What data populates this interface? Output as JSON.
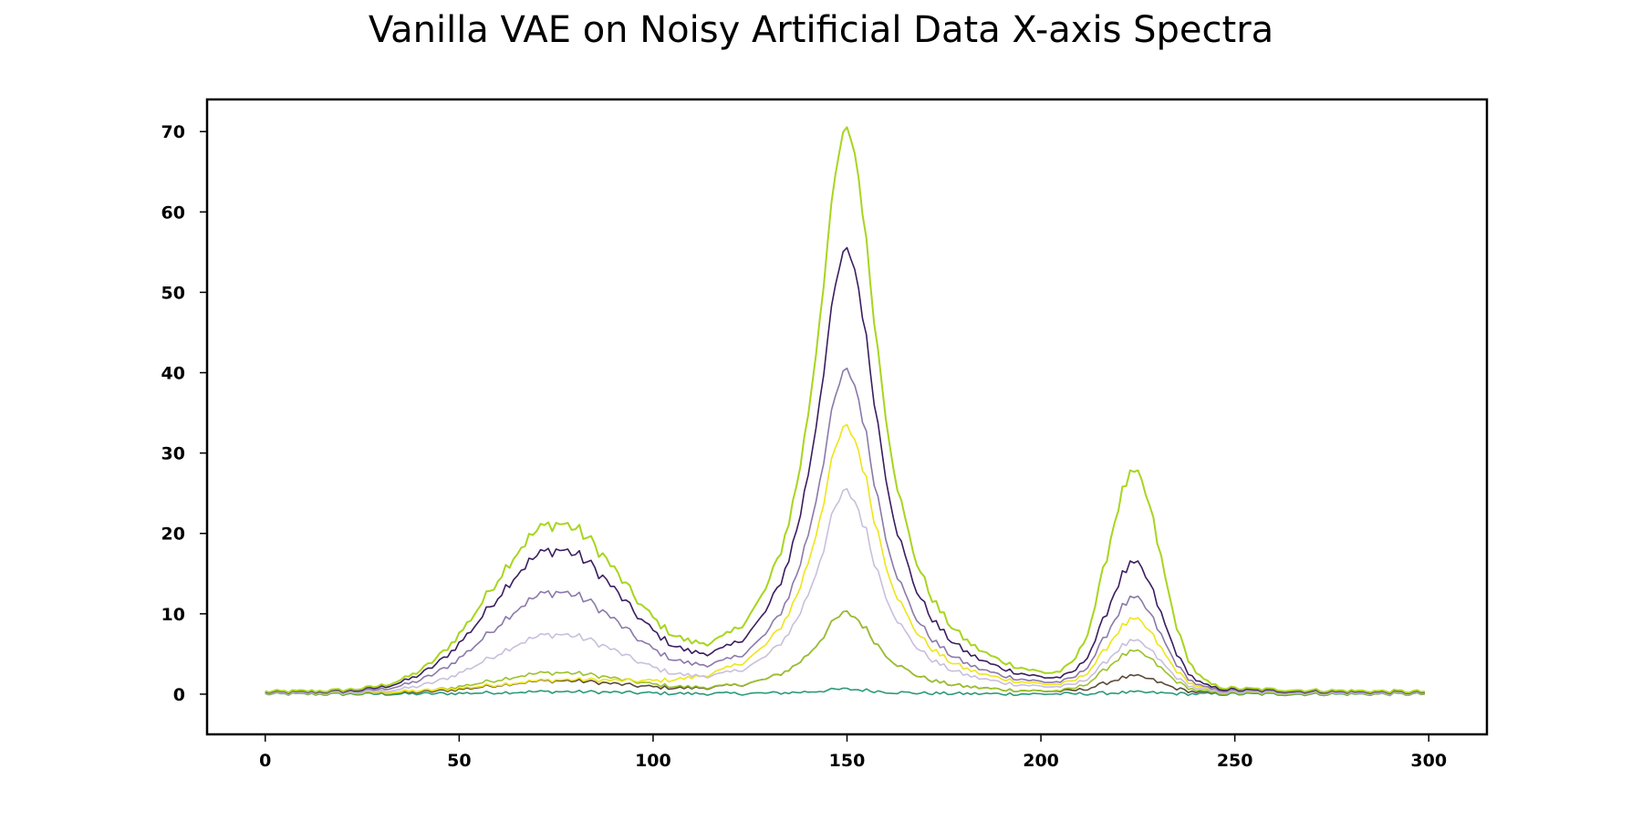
{
  "chart_data": {
    "type": "line",
    "title": "Vanilla VAE on Noisy Artificial Data X-axis Spectra",
    "xlabel": "",
    "ylabel": "",
    "xlim": [
      -15,
      315
    ],
    "ylim": [
      -5,
      74
    ],
    "x_ticks": [
      0,
      50,
      100,
      150,
      200,
      250,
      300
    ],
    "y_ticks": [
      0,
      10,
      20,
      30,
      40,
      50,
      60,
      70
    ],
    "x_range": [
      0,
      299
    ],
    "grid": false,
    "legend": "none",
    "colormap": [
      "#440154",
      "#21918c",
      "#5ec962",
      "#a8d51f",
      "#fde725"
    ],
    "peaks": [
      {
        "center": 75,
        "width": 17,
        "shape": "gaussian"
      },
      {
        "center": 150,
        "width": 10,
        "shape": "lorentzian"
      },
      {
        "center": 224,
        "width": 7,
        "shape": "gaussian"
      }
    ],
    "series": [
      {
        "color": "#a8d51f",
        "amplitudes": [
          20,
          70,
          26
        ]
      },
      {
        "color": "#3b1d60",
        "amplitudes": [
          17,
          55,
          15
        ]
      },
      {
        "color": "#8b79aa",
        "amplitudes": [
          12,
          40,
          11
        ]
      },
      {
        "color": "#c9bfdc",
        "amplitudes": [
          7,
          25,
          6
        ]
      },
      {
        "color": "#f0e41a",
        "amplitudes": [
          1.2,
          33,
          8.5
        ]
      },
      {
        "color": "#9bc22a",
        "amplitudes": [
          2.5,
          10,
          5
        ]
      },
      {
        "color": "#5a4a3a",
        "amplitudes": [
          1.5,
          10,
          2
        ]
      },
      {
        "color": "#2a9a7a",
        "amplitudes": [
          0.3,
          0.6,
          0.2
        ]
      }
    ]
  }
}
